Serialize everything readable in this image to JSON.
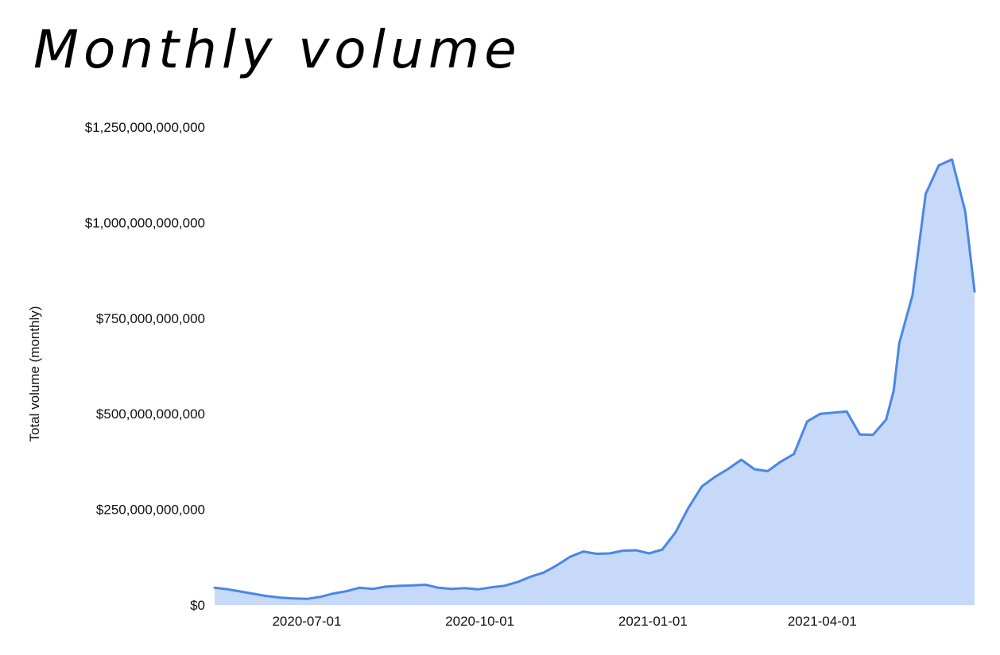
{
  "chart_data": {
    "type": "area",
    "title": "Monthly volume",
    "xlabel": "",
    "ylabel": "Total volume (monthly)",
    "ylim": [
      0,
      1250000000000
    ],
    "xlim": [
      "2020-05-13",
      "2021-06-21"
    ],
    "grid": false,
    "legend": "none",
    "y_ticks": [
      {
        "value": 0,
        "label": "$0"
      },
      {
        "value": 250000000000,
        "label": "$250,000,000,000"
      },
      {
        "value": 500000000000,
        "label": "$500,000,000,000"
      },
      {
        "value": 750000000000,
        "label": "$750,000,000,000"
      },
      {
        "value": 1000000000000,
        "label": "$1,000,000,000,000"
      },
      {
        "value": 1250000000000,
        "label": "$1,250,000,000,000"
      }
    ],
    "x_ticks": [
      {
        "value": "2020-07-01",
        "label": "2020-07-01"
      },
      {
        "value": "2020-10-01",
        "label": "2020-10-01"
      },
      {
        "value": "2021-01-01",
        "label": "2021-01-01"
      },
      {
        "value": "2021-04-01",
        "label": "2021-04-01"
      }
    ],
    "series": [
      {
        "line_color": "#4a86e8",
        "fill_color": "#c6d9f8",
        "x": [
          "2020-05-13",
          "2020-05-20",
          "2020-05-27",
          "2020-06-03",
          "2020-06-10",
          "2020-06-17",
          "2020-06-24",
          "2020-07-01",
          "2020-07-08",
          "2020-07-15",
          "2020-07-22",
          "2020-07-29",
          "2020-08-05",
          "2020-08-12",
          "2020-08-19",
          "2020-08-26",
          "2020-09-02",
          "2020-09-09",
          "2020-09-16",
          "2020-09-23",
          "2020-09-30",
          "2020-10-07",
          "2020-10-14",
          "2020-10-21",
          "2020-10-28",
          "2020-11-04",
          "2020-11-11",
          "2020-11-18",
          "2020-11-25",
          "2020-12-02",
          "2020-12-09",
          "2020-12-16",
          "2020-12-23",
          "2020-12-30",
          "2021-01-06",
          "2021-01-13",
          "2021-01-20",
          "2021-01-27",
          "2021-02-03",
          "2021-02-10",
          "2021-02-17",
          "2021-02-24",
          "2021-03-03",
          "2021-03-10",
          "2021-03-17",
          "2021-03-24",
          "2021-03-31",
          "2021-04-07",
          "2021-04-14",
          "2021-04-21",
          "2021-04-28",
          "2021-05-05",
          "2021-05-09",
          "2021-05-12",
          "2021-05-19",
          "2021-05-26",
          "2021-06-02",
          "2021-06-09",
          "2021-06-16",
          "2021-06-21"
        ],
        "values": [
          45000000000,
          41000000000,
          35000000000,
          29000000000,
          23000000000,
          19000000000,
          17000000000,
          16000000000,
          21000000000,
          30000000000,
          36000000000,
          45000000000,
          42000000000,
          48000000000,
          50000000000,
          51000000000,
          53000000000,
          45000000000,
          42000000000,
          44000000000,
          41000000000,
          46000000000,
          50000000000,
          60000000000,
          74000000000,
          85000000000,
          104000000000,
          126000000000,
          140000000000,
          134000000000,
          135000000000,
          142000000000,
          143000000000,
          135000000000,
          145000000000,
          190000000000,
          255000000000,
          310000000000,
          335000000000,
          356000000000,
          380000000000,
          355000000000,
          350000000000,
          375000000000,
          395000000000,
          480000000000,
          500000000000,
          503000000000,
          506000000000,
          446000000000,
          445000000000,
          485000000000,
          560000000000,
          685000000000,
          810000000000,
          1075000000000,
          1150000000000,
          1165000000000,
          1030000000000,
          820000000000
        ]
      }
    ]
  }
}
